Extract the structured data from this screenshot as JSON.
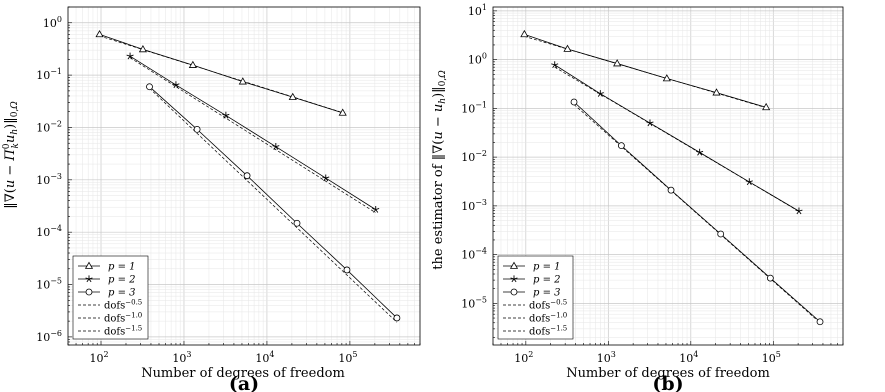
{
  "chart_data": [
    {
      "type": "line",
      "panel_label": "(a)",
      "xlabel": "Number of degrees of freedom",
      "ylabel": "‖∇(u − Π⁰ₖuₕ)‖₀,Ω",
      "xscale": "log",
      "yscale": "log",
      "xlim": [
        40,
        700000
      ],
      "ylim": [
        7e-07,
        2
      ],
      "x_ticks": [
        {
          "value": 100,
          "base": "10",
          "exp": "2"
        },
        {
          "value": 1000,
          "base": "10",
          "exp": "3"
        },
        {
          "value": 10000,
          "base": "10",
          "exp": "4"
        },
        {
          "value": 100000,
          "base": "10",
          "exp": "5"
        }
      ],
      "y_ticks": [
        {
          "value": 1e-06,
          "base": "10",
          "exp": "−6"
        },
        {
          "value": 1e-05,
          "base": "10",
          "exp": "−5"
        },
        {
          "value": 0.0001,
          "base": "10",
          "exp": "−4"
        },
        {
          "value": 0.001,
          "base": "10",
          "exp": "−3"
        },
        {
          "value": 0.01,
          "base": "10",
          "exp": "−2"
        },
        {
          "value": 0.1,
          "base": "10",
          "exp": "−1"
        },
        {
          "value": 1,
          "base": "10",
          "exp": "0"
        }
      ],
      "grid": true,
      "legend_position": "bottom-left",
      "series": [
        {
          "name": "p = 1",
          "marker": "triangle",
          "x": [
            96,
            320,
            1280,
            5120,
            20480,
            81920
          ],
          "y": [
            0.6,
            0.31,
            0.155,
            0.075,
            0.038,
            0.019
          ]
        },
        {
          "name": "p = 2",
          "marker": "star",
          "x": [
            224,
            800,
            3200,
            12800,
            51200,
            204800
          ],
          "y": [
            0.23,
            0.065,
            0.017,
            0.0043,
            0.00108,
            0.00027
          ]
        },
        {
          "name": "p = 3",
          "marker": "circle",
          "x": [
            384,
            1440,
            5760,
            23040,
            92160,
            368640
          ],
          "y": [
            0.06,
            0.0092,
            0.0012,
            0.000148,
            1.9e-05,
            2.3e-06
          ]
        },
        {
          "name": "dofs^−0.5",
          "ref": true,
          "x": [
            96,
            81920
          ],
          "y": [
            0.56,
            0.0192
          ]
        },
        {
          "name": "dofs^−1.0",
          "ref": true,
          "x": [
            224,
            204800
          ],
          "y": [
            0.215,
            0.000235
          ]
        },
        {
          "name": "dofs^−1.5",
          "ref": true,
          "x": [
            384,
            368640
          ],
          "y": [
            0.056,
            1.9e-06
          ]
        }
      ]
    },
    {
      "type": "line",
      "panel_label": "(b)",
      "xlabel": "Number of degrees of freedom",
      "ylabel": "the estimator of ‖∇(u − uₕ)‖₀,Ω",
      "xscale": "log",
      "yscale": "log",
      "xlim": [
        40,
        700000
      ],
      "ylim": [
        1.4e-06,
        12
      ],
      "x_ticks": [
        {
          "value": 100,
          "base": "10",
          "exp": "2"
        },
        {
          "value": 1000,
          "base": "10",
          "exp": "3"
        },
        {
          "value": 10000,
          "base": "10",
          "exp": "4"
        },
        {
          "value": 100000,
          "base": "10",
          "exp": "5"
        }
      ],
      "y_ticks": [
        {
          "value": 1e-05,
          "base": "10",
          "exp": "−5"
        },
        {
          "value": 0.0001,
          "base": "10",
          "exp": "−4"
        },
        {
          "value": 0.001,
          "base": "10",
          "exp": "−3"
        },
        {
          "value": 0.01,
          "base": "10",
          "exp": "−2"
        },
        {
          "value": 0.1,
          "base": "10",
          "exp": "−1"
        },
        {
          "value": 1,
          "base": "10",
          "exp": "0"
        },
        {
          "value": 10,
          "base": "10",
          "exp": "1"
        }
      ],
      "grid": true,
      "legend_position": "bottom-left",
      "series": [
        {
          "name": "p = 1",
          "marker": "triangle",
          "x": [
            96,
            320,
            1280,
            5120,
            20480,
            81920
          ],
          "y": [
            3.3,
            1.65,
            0.83,
            0.41,
            0.21,
            0.105
          ]
        },
        {
          "name": "p = 2",
          "marker": "star",
          "x": [
            224,
            800,
            3200,
            12800,
            51200,
            204800
          ],
          "y": [
            0.78,
            0.2,
            0.05,
            0.0125,
            0.0031,
            0.00078
          ]
        },
        {
          "name": "p = 3",
          "marker": "circle",
          "x": [
            384,
            1440,
            5760,
            23040,
            92160,
            368640
          ],
          "y": [
            0.135,
            0.0172,
            0.0021,
            0.000265,
            3.3e-05,
            4.2e-06
          ]
        },
        {
          "name": "dofs^−0.5",
          "ref": true,
          "x": [
            96,
            81920
          ],
          "y": [
            3.0,
            0.103
          ]
        },
        {
          "name": "dofs^−1.0",
          "ref": true,
          "x": [
            224,
            204800
          ],
          "y": [
            0.7,
            0.00077
          ]
        },
        {
          "name": "dofs^−1.5",
          "ref": true,
          "x": [
            384,
            368640
          ],
          "y": [
            0.12,
            4e-06
          ]
        }
      ]
    }
  ],
  "legend_labels": {
    "p1": "p = 1",
    "p2": "p = 2",
    "p3": "p = 3",
    "ref_base": "dofs",
    "ref05": "−0.5",
    "ref10": "−1.0",
    "ref15": "−1.5"
  }
}
